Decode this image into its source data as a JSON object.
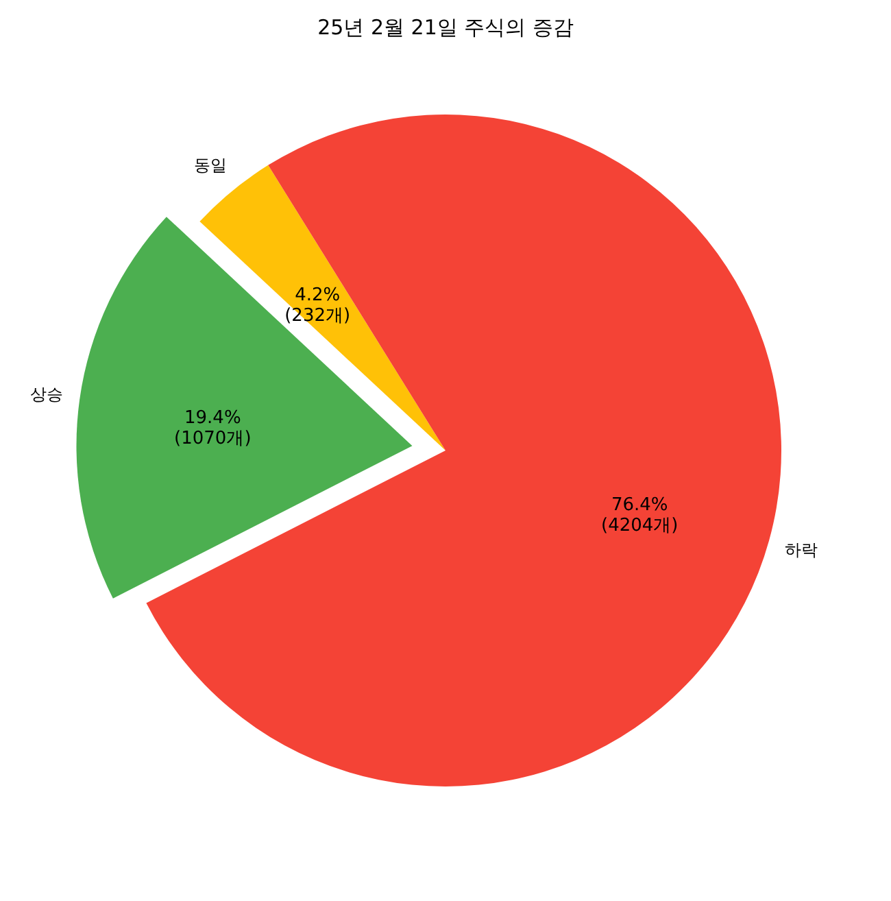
{
  "chart_data": {
    "type": "pie",
    "title": "25년 2월 21일 주식의 증감",
    "categories": [
      "상승",
      "동일",
      "하락"
    ],
    "values": [
      1070,
      232,
      4204
    ],
    "colors": [
      "#4caf50",
      "#ffc107",
      "#f44336"
    ],
    "value_labels": [
      "19.4%\n(1070개)",
      "4.2%\n(232개)",
      "76.4%\n(4204개)"
    ]
  }
}
